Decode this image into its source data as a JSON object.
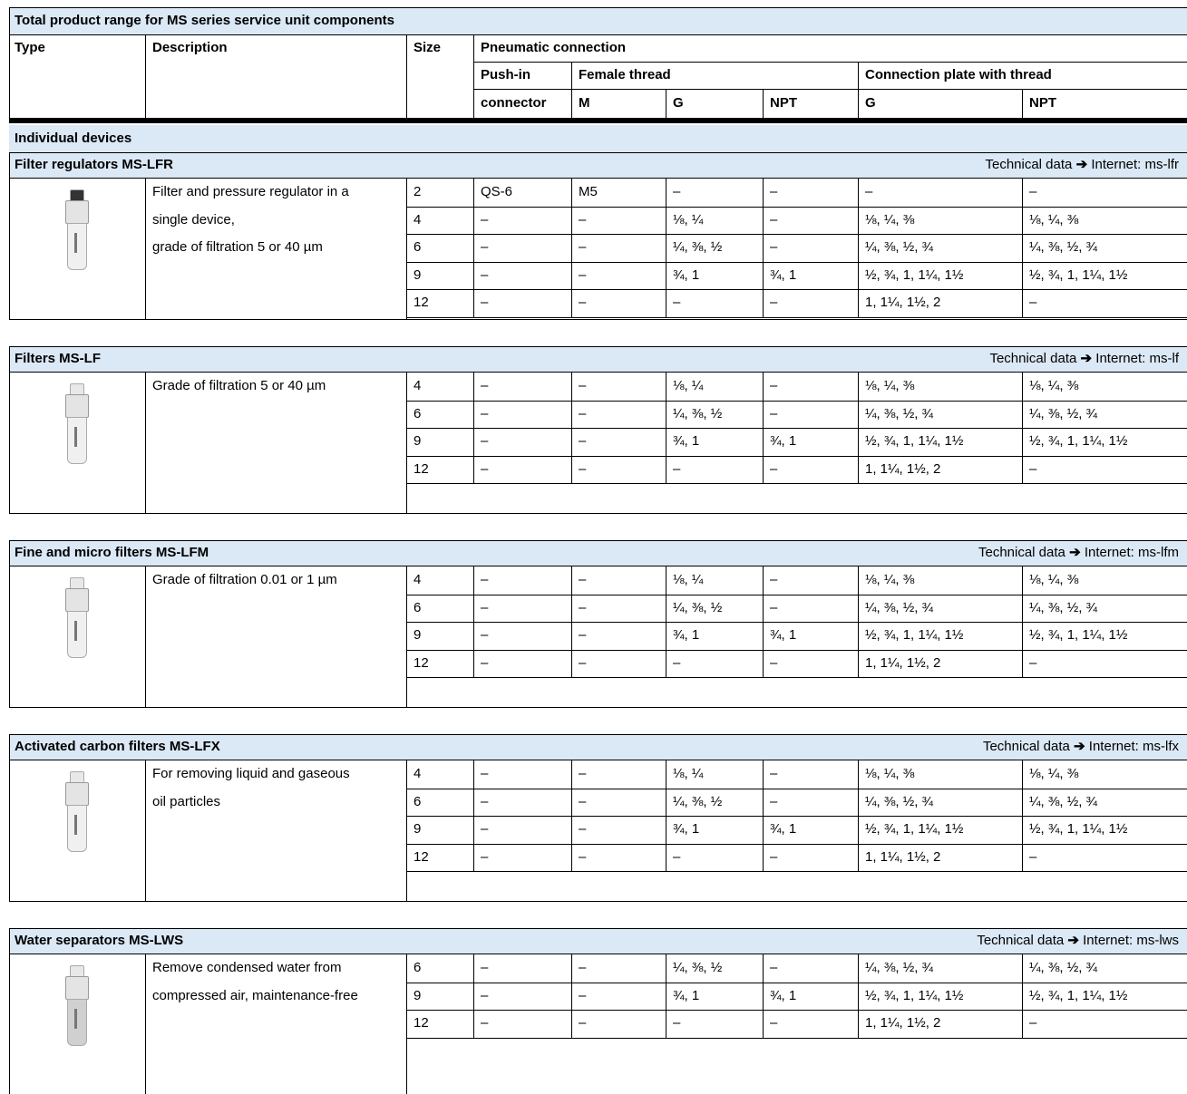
{
  "title": "Total product range for MS series service unit components",
  "header": {
    "type": "Type",
    "description": "Description",
    "size": "Size",
    "pneumatic": "Pneumatic connection",
    "push_in": "Push-in",
    "connector": "connector",
    "female_thread": "Female thread",
    "connection_plate": "Connection plate with thread",
    "columns": [
      "M",
      "G",
      "NPT",
      "G",
      "NPT"
    ]
  },
  "group": "Individual devices",
  "sections": [
    {
      "title": "Filter regulators MS-LFR",
      "link_label": "Technical data",
      "link_arrow": "➔",
      "link_target": "Internet: ms-lfr",
      "description": [
        "Filter and pressure regulator in a",
        "single device,",
        "grade of filtration 5 or 40 µm"
      ],
      "rows": [
        [
          "2",
          "QS-6",
          "M5",
          "–",
          "–",
          "–",
          "–"
        ],
        [
          "4",
          "–",
          "–",
          "⅛, ¼",
          "–",
          "⅛, ¼, ⅜",
          "⅛, ¼, ⅜"
        ],
        [
          "6",
          "–",
          "–",
          "¼, ⅜, ½",
          "–",
          "¼, ⅜, ½, ¾",
          "¼, ⅜, ½, ¾"
        ],
        [
          "9",
          "–",
          "–",
          "¾, 1",
          "¾, 1",
          "½, ¾, 1, 1¼, 1½",
          "½, ¾, 1, 1¼, 1½"
        ],
        [
          "12",
          "–",
          "–",
          "–",
          "–",
          "1, 1¼, 1½, 2",
          "–"
        ]
      ]
    },
    {
      "title": "Filters MS-LF",
      "link_label": "Technical data",
      "link_arrow": "➔",
      "link_target": "Internet: ms-lf",
      "description": [
        "Grade of filtration 5 or 40 µm"
      ],
      "rows": [
        [
          "4",
          "–",
          "–",
          "⅛, ¼",
          "–",
          "⅛, ¼, ⅜",
          "⅛, ¼, ⅜"
        ],
        [
          "6",
          "–",
          "–",
          "¼, ⅜, ½",
          "–",
          "¼, ⅜, ½, ¾",
          "¼, ⅜, ½, ¾"
        ],
        [
          "9",
          "–",
          "–",
          "¾, 1",
          "¾, 1",
          "½, ¾, 1, 1¼, 1½",
          "½, ¾, 1, 1¼, 1½"
        ],
        [
          "12",
          "–",
          "–",
          "–",
          "–",
          "1, 1¼, 1½, 2",
          "–"
        ]
      ]
    },
    {
      "title": "Fine and micro filters MS-LFM",
      "link_label": "Technical data",
      "link_arrow": "➔",
      "link_target": "Internet: ms-lfm",
      "description": [
        "Grade of filtration 0.01 or 1 µm"
      ],
      "rows": [
        [
          "4",
          "–",
          "–",
          "⅛, ¼",
          "–",
          "⅛, ¼, ⅜",
          "⅛, ¼, ⅜"
        ],
        [
          "6",
          "–",
          "–",
          "¼, ⅜, ½",
          "–",
          "¼, ⅜, ½, ¾",
          "¼, ⅜, ½, ¾"
        ],
        [
          "9",
          "–",
          "–",
          "¾, 1",
          "¾, 1",
          "½, ¾, 1, 1¼, 1½",
          "½, ¾, 1, 1¼, 1½"
        ],
        [
          "12",
          "–",
          "–",
          "–",
          "–",
          "1, 1¼, 1½, 2",
          "–"
        ]
      ]
    },
    {
      "title": "Activated carbon filters MS-LFX",
      "link_label": "Technical data",
      "link_arrow": "➔",
      "link_target": "Internet: ms-lfx",
      "description": [
        "For removing liquid and gaseous",
        "oil particles"
      ],
      "rows": [
        [
          "4",
          "–",
          "–",
          "⅛, ¼",
          "–",
          "⅛, ¼, ⅜",
          "⅛, ¼, ⅜"
        ],
        [
          "6",
          "–",
          "–",
          "¼, ⅜, ½",
          "–",
          "¼, ⅜, ½, ¾",
          "¼, ⅜, ½, ¾"
        ],
        [
          "9",
          "–",
          "–",
          "¾, 1",
          "¾, 1",
          "½, ¾, 1, 1¼, 1½",
          "½, ¾, 1, 1¼, 1½"
        ],
        [
          "12",
          "–",
          "–",
          "–",
          "–",
          "1, 1¼, 1½, 2",
          "–"
        ]
      ]
    },
    {
      "title": "Water separators MS-LWS",
      "link_label": "Technical data",
      "link_arrow": "➔",
      "link_target": "Internet: ms-lws",
      "description": [
        "Remove condensed water from",
        "compressed air, maintenance-free"
      ],
      "rows": [
        [
          "6",
          "–",
          "–",
          "¼, ⅜, ½",
          "–",
          "¼, ⅜, ½, ¾",
          "¼, ⅜, ½, ¾"
        ],
        [
          "9",
          "–",
          "–",
          "¾, 1",
          "¾, 1",
          "½, ¾, 1, 1¼, 1½",
          "½, ¾, 1, 1¼, 1½"
        ],
        [
          "12",
          "–",
          "–",
          "–",
          "–",
          "1, 1¼, 1½, 2",
          "–"
        ]
      ]
    }
  ]
}
